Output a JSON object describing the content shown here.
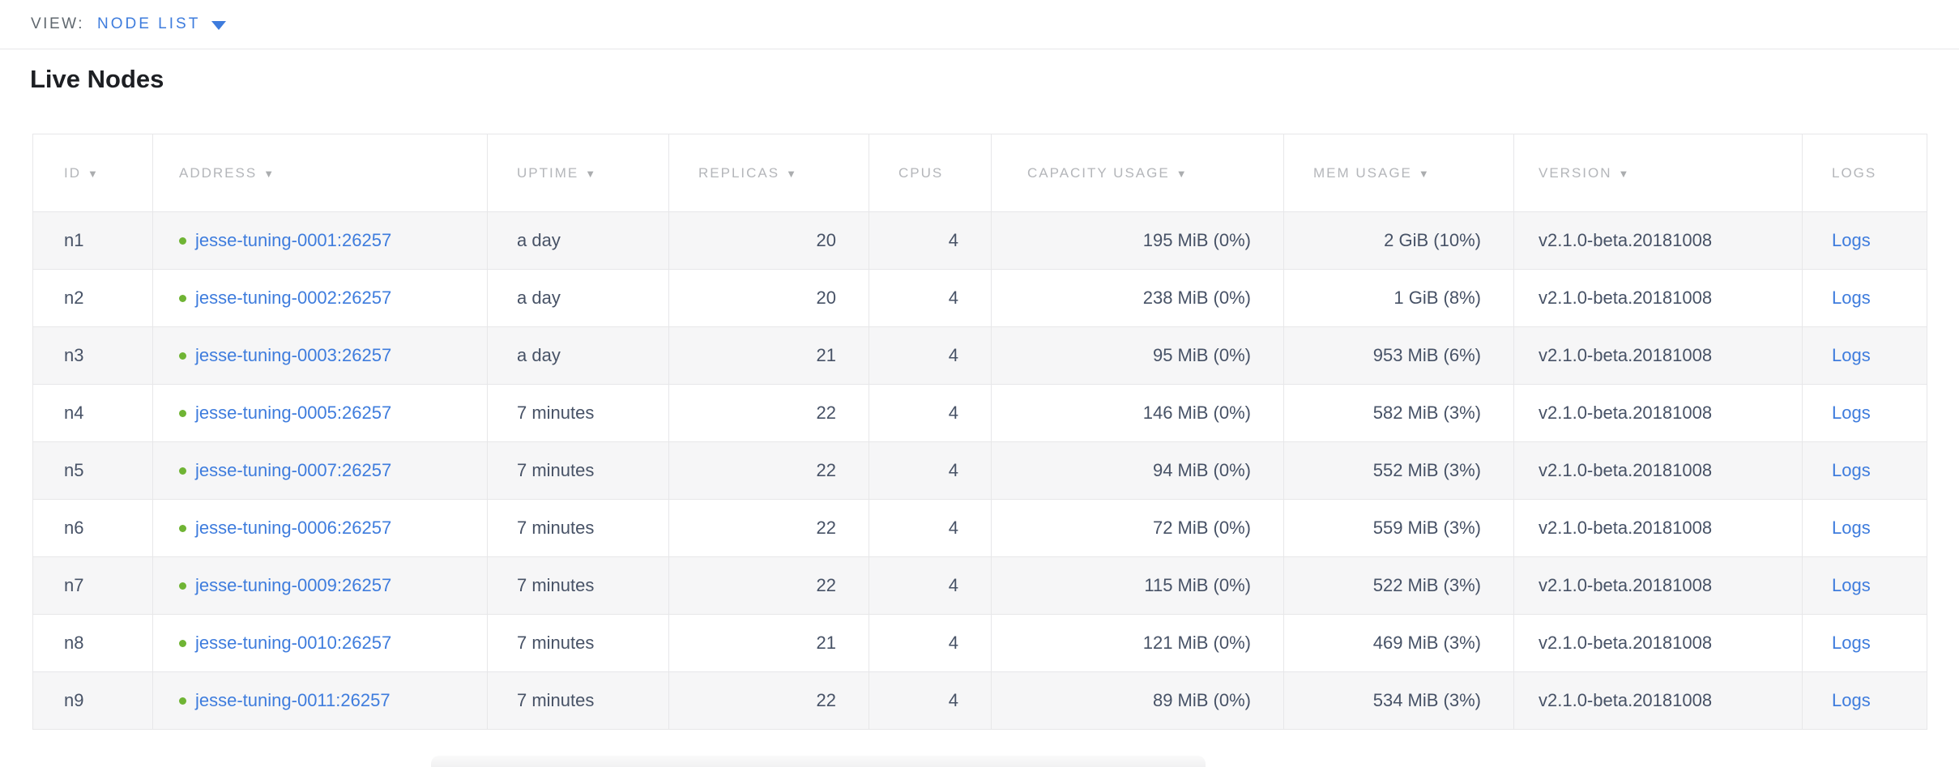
{
  "view_bar": {
    "label": "VIEW:",
    "selected": "NODE LIST"
  },
  "page": {
    "title": "Live Nodes"
  },
  "icons": {
    "sort_desc": "▼"
  },
  "colors": {
    "accent_blue": "#3e7cdd",
    "link_blue": "#3e7cdd",
    "live_status_green": "#6fb434",
    "cell_text": "#475266",
    "header_text": "#b4b6ba",
    "row_stripe": "#f6f6f7",
    "table_border": "#e7e7e9"
  },
  "table": {
    "columns": [
      {
        "key": "id",
        "label": "ID",
        "sortable": true
      },
      {
        "key": "address",
        "label": "ADDRESS",
        "sortable": true
      },
      {
        "key": "uptime",
        "label": "UPTIME",
        "sortable": true
      },
      {
        "key": "replicas",
        "label": "REPLICAS",
        "sortable": true
      },
      {
        "key": "cpus",
        "label": "CPUS",
        "sortable": false
      },
      {
        "key": "capacity",
        "label": "CAPACITY USAGE",
        "sortable": true
      },
      {
        "key": "mem",
        "label": "MEM USAGE",
        "sortable": true
      },
      {
        "key": "version",
        "label": "VERSION",
        "sortable": true
      },
      {
        "key": "logs",
        "label": "LOGS",
        "sortable": false
      }
    ],
    "rows": [
      {
        "id": "n1",
        "address": "jesse-tuning-0001:26257",
        "uptime": "a day",
        "replicas": "20",
        "cpus": "4",
        "capacity": "195 MiB (0%)",
        "mem": "2 GiB (10%)",
        "version": "v2.1.0-beta.20181008",
        "logs": "Logs"
      },
      {
        "id": "n2",
        "address": "jesse-tuning-0002:26257",
        "uptime": "a day",
        "replicas": "20",
        "cpus": "4",
        "capacity": "238 MiB (0%)",
        "mem": "1 GiB (8%)",
        "version": "v2.1.0-beta.20181008",
        "logs": "Logs"
      },
      {
        "id": "n3",
        "address": "jesse-tuning-0003:26257",
        "uptime": "a day",
        "replicas": "21",
        "cpus": "4",
        "capacity": "95 MiB (0%)",
        "mem": "953 MiB (6%)",
        "version": "v2.1.0-beta.20181008",
        "logs": "Logs"
      },
      {
        "id": "n4",
        "address": "jesse-tuning-0005:26257",
        "uptime": "7 minutes",
        "replicas": "22",
        "cpus": "4",
        "capacity": "146 MiB (0%)",
        "mem": "582 MiB (3%)",
        "version": "v2.1.0-beta.20181008",
        "logs": "Logs"
      },
      {
        "id": "n5",
        "address": "jesse-tuning-0007:26257",
        "uptime": "7 minutes",
        "replicas": "22",
        "cpus": "4",
        "capacity": "94 MiB (0%)",
        "mem": "552 MiB (3%)",
        "version": "v2.1.0-beta.20181008",
        "logs": "Logs"
      },
      {
        "id": "n6",
        "address": "jesse-tuning-0006:26257",
        "uptime": "7 minutes",
        "replicas": "22",
        "cpus": "4",
        "capacity": "72 MiB (0%)",
        "mem": "559 MiB (3%)",
        "version": "v2.1.0-beta.20181008",
        "logs": "Logs"
      },
      {
        "id": "n7",
        "address": "jesse-tuning-0009:26257",
        "uptime": "7 minutes",
        "replicas": "22",
        "cpus": "4",
        "capacity": "115 MiB (0%)",
        "mem": "522 MiB (3%)",
        "version": "v2.1.0-beta.20181008",
        "logs": "Logs"
      },
      {
        "id": "n8",
        "address": "jesse-tuning-0010:26257",
        "uptime": "7 minutes",
        "replicas": "21",
        "cpus": "4",
        "capacity": "121 MiB (0%)",
        "mem": "469 MiB (3%)",
        "version": "v2.1.0-beta.20181008",
        "logs": "Logs"
      },
      {
        "id": "n9",
        "address": "jesse-tuning-0011:26257",
        "uptime": "7 minutes",
        "replicas": "22",
        "cpus": "4",
        "capacity": "89 MiB (0%)",
        "mem": "534 MiB (3%)",
        "version": "v2.1.0-beta.20181008",
        "logs": "Logs"
      }
    ]
  }
}
